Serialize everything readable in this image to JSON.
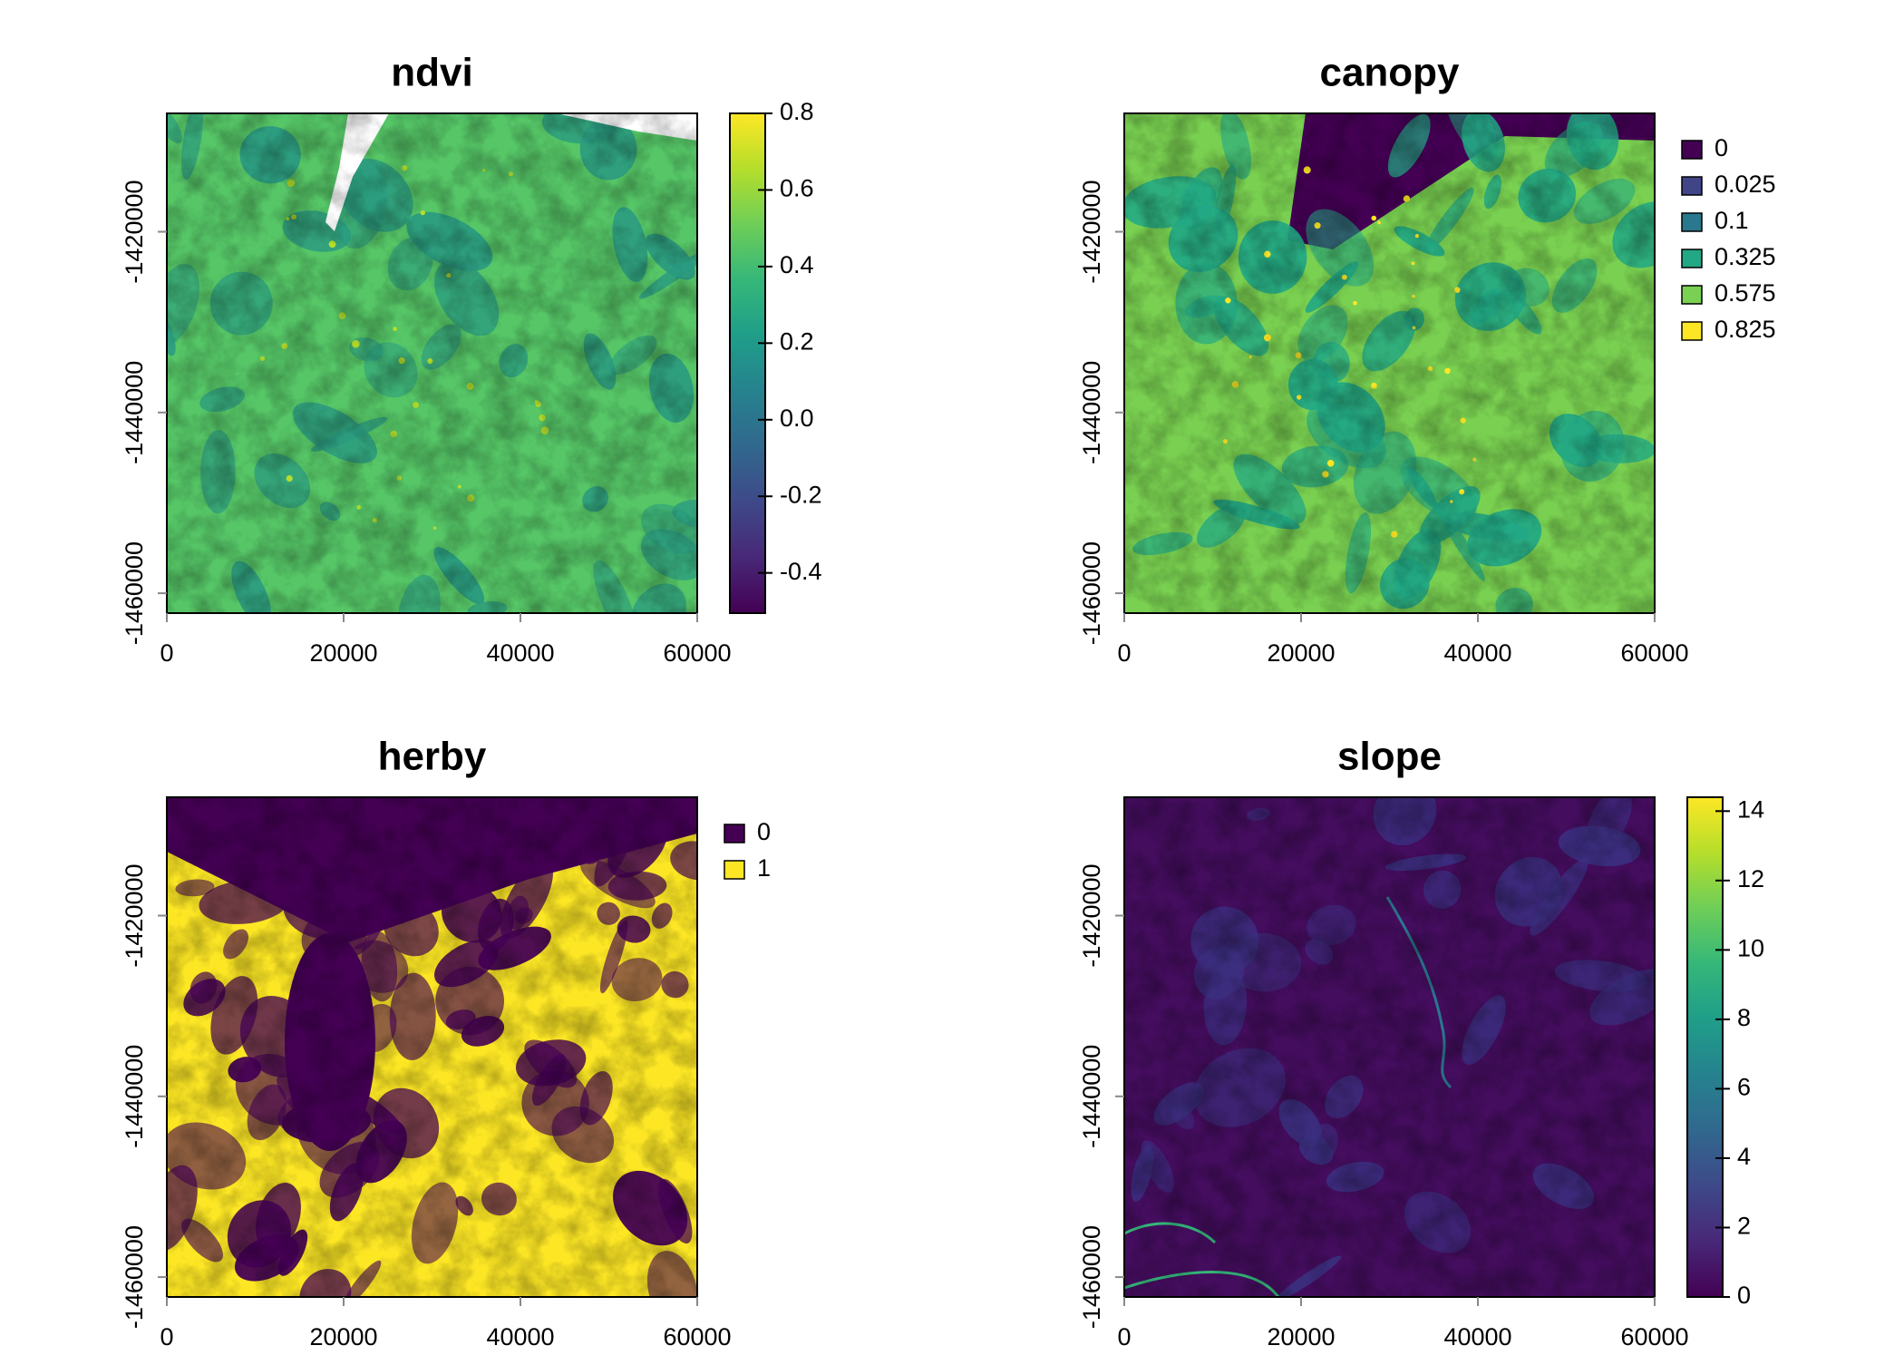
{
  "chart_data": [
    {
      "type": "raster",
      "title": "ndvi",
      "xlim": [
        0,
        60000
      ],
      "xticks": [
        0,
        20000,
        40000,
        60000
      ],
      "ylim": [
        -1462200,
        -1406900
      ],
      "yticks": [
        -1460000,
        -1440000,
        -1420000
      ],
      "legend": {
        "type": "colorbar",
        "zlim": [
          -0.505,
          0.8
        ],
        "zticks": [
          -0.4,
          -0.2,
          {
            "value": 0,
            "label": "0.0"
          },
          0.2,
          0.4,
          0.6,
          0.8
        ],
        "colors": [
          "#440154",
          "#482878",
          "#3e4989",
          "#31688e",
          "#26828e",
          "#1f9e89",
          "#35b779",
          "#6ece58",
          "#b5de2b",
          "#fde725"
        ]
      }
    },
    {
      "type": "raster",
      "title": "canopy",
      "xlim": [
        0,
        60000
      ],
      "xticks": [
        0,
        20000,
        40000,
        60000
      ],
      "ylim": [
        -1462200,
        -1406900
      ],
      "yticks": [
        -1460000,
        -1440000,
        -1420000
      ],
      "legend": {
        "type": "classes",
        "values": [
          0,
          0.025,
          0.1,
          0.325,
          0.575,
          0.825
        ],
        "colors": [
          "#440154",
          "#414487",
          "#2a788e",
          "#22a884",
          "#7ad151",
          "#fde725"
        ]
      }
    },
    {
      "type": "raster",
      "title": "herby",
      "xlim": [
        0,
        60000
      ],
      "xticks": [
        0,
        20000,
        40000,
        60000
      ],
      "ylim": [
        -1462200,
        -1406900
      ],
      "yticks": [
        -1460000,
        -1440000,
        -1420000
      ],
      "legend": {
        "type": "classes",
        "values": [
          0,
          1
        ],
        "colors": [
          "#440154",
          "#fde725"
        ]
      }
    },
    {
      "type": "raster",
      "title": "slope",
      "xlim": [
        0,
        60000
      ],
      "xticks": [
        0,
        20000,
        40000,
        60000
      ],
      "ylim": [
        -1462200,
        -1406900
      ],
      "yticks": [
        -1460000,
        -1440000,
        -1420000
      ],
      "legend": {
        "type": "colorbar",
        "zlim": [
          0,
          14.4
        ],
        "zticks": [
          0,
          2,
          4,
          6,
          8,
          10,
          12,
          14
        ],
        "colors": [
          "#440154",
          "#482878",
          "#3e4989",
          "#31688e",
          "#26828e",
          "#1f9e89",
          "#35b779",
          "#6ece58",
          "#b5de2b",
          "#fde725"
        ]
      }
    }
  ]
}
